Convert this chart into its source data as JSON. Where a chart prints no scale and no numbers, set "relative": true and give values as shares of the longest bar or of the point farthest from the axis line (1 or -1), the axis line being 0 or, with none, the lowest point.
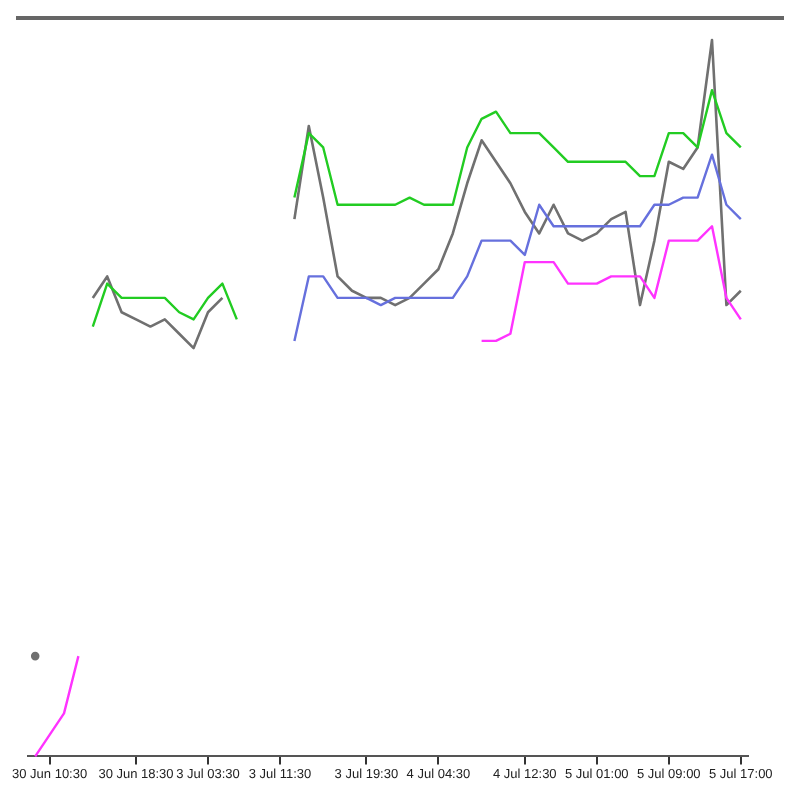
{
  "chart_data": {
    "type": "line",
    "relative": true,
    "legend": false,
    "grid": false,
    "marker": "none",
    "tick_labels": "x",
    "categories": [
      null,
      "30 Jun 10:30",
      null,
      null,
      null,
      null,
      null,
      "30 Jun 18:30",
      null,
      null,
      null,
      null,
      "3 Jul 03:30",
      null,
      null,
      null,
      null,
      "3 Jul 11:30",
      null,
      null,
      null,
      null,
      null,
      "3 Jul 19:30",
      null,
      null,
      null,
      null,
      "4 Jul 04:30",
      null,
      null,
      null,
      null,
      null,
      "4 Jul 12:30",
      null,
      null,
      null,
      null,
      "5 Jul 01:00",
      null,
      null,
      null,
      null,
      "5 Jul 09:00",
      null,
      null,
      null,
      null,
      "5 Jul 17:00"
    ],
    "series": [
      {
        "color": "#22cc22",
        "values": [
          null,
          null,
          null,
          null,
          0.6,
          0.66,
          0.64,
          0.64,
          0.64,
          0.64,
          0.62,
          0.61,
          0.64,
          0.66,
          0.61,
          null,
          null,
          null,
          0.78,
          0.87,
          0.85,
          0.77,
          0.77,
          0.77,
          0.77,
          0.77,
          0.78,
          0.77,
          0.77,
          0.77,
          0.85,
          0.89,
          0.9,
          0.87,
          0.87,
          0.87,
          0.85,
          0.83,
          0.83,
          0.83,
          0.83,
          0.83,
          0.81,
          0.81,
          0.87,
          0.87,
          0.85,
          0.93,
          0.87,
          0.85
        ]
      },
      {
        "color": "#6670dd",
        "values": [
          null,
          null,
          null,
          null,
          null,
          null,
          null,
          null,
          null,
          null,
          null,
          null,
          null,
          null,
          null,
          null,
          null,
          null,
          0.58,
          0.67,
          0.67,
          0.64,
          0.64,
          0.64,
          0.63,
          0.64,
          0.64,
          0.64,
          0.64,
          0.64,
          0.67,
          0.72,
          0.72,
          0.72,
          0.7,
          0.77,
          0.74,
          0.74,
          0.74,
          0.74,
          0.74,
          0.74,
          0.74,
          0.77,
          0.77,
          0.78,
          0.78,
          0.84,
          0.77,
          0.75
        ]
      },
      {
        "color": "#ff33ff",
        "values": [
          0,
          0.03,
          0.06,
          0.14,
          null,
          null,
          null,
          null,
          null,
          null,
          null,
          null,
          null,
          null,
          null,
          null,
          null,
          null,
          null,
          null,
          null,
          null,
          null,
          null,
          null,
          null,
          null,
          null,
          null,
          null,
          null,
          0.58,
          0.58,
          0.59,
          0.69,
          0.69,
          0.69,
          0.66,
          0.66,
          0.66,
          0.67,
          0.67,
          0.67,
          0.64,
          0.72,
          0.72,
          0.72,
          0.74,
          0.64,
          0.61
        ]
      },
      {
        "color": "#707070",
        "values": [
          0.14,
          null,
          null,
          null,
          0.64,
          0.67,
          0.62,
          0.61,
          0.6,
          0.61,
          0.59,
          0.57,
          0.62,
          0.64,
          null,
          null,
          null,
          null,
          0.75,
          0.88,
          0.78,
          0.67,
          0.65,
          0.64,
          0.64,
          0.63,
          0.64,
          0.66,
          0.68,
          0.73,
          0.8,
          0.86,
          0.83,
          0.8,
          0.76,
          0.73,
          0.77,
          0.73,
          0.72,
          0.73,
          0.75,
          0.76,
          0.63,
          0.72,
          0.83,
          0.82,
          0.85,
          1,
          0.63,
          0.65
        ]
      }
    ]
  }
}
